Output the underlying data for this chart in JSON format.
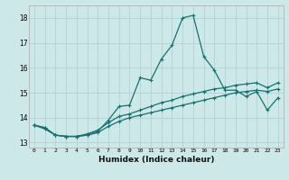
{
  "title": "",
  "xlabel": "Humidex (Indice chaleur)",
  "background_color": "#cce8e8",
  "grid_color": "#b8d4d4",
  "line_color": "#1a7070",
  "xlim": [
    -0.5,
    23.5
  ],
  "ylim": [
    12.8,
    18.5
  ],
  "xticks": [
    0,
    1,
    2,
    3,
    4,
    5,
    6,
    7,
    8,
    9,
    10,
    11,
    12,
    13,
    14,
    15,
    16,
    17,
    18,
    19,
    20,
    21,
    22,
    23
  ],
  "yticks": [
    13,
    14,
    15,
    16,
    17,
    18
  ],
  "line1_y": [
    13.7,
    13.6,
    13.3,
    13.25,
    13.25,
    13.3,
    13.4,
    13.65,
    13.85,
    14.0,
    14.1,
    14.2,
    14.3,
    14.4,
    14.5,
    14.6,
    14.7,
    14.8,
    14.9,
    15.0,
    15.05,
    15.1,
    15.05,
    15.15
  ],
  "line2_y": [
    13.7,
    13.55,
    13.3,
    13.25,
    13.25,
    13.35,
    13.5,
    13.8,
    14.05,
    14.15,
    14.3,
    14.45,
    14.6,
    14.7,
    14.85,
    14.95,
    15.05,
    15.15,
    15.2,
    15.3,
    15.35,
    15.4,
    15.2,
    15.4
  ],
  "line3_y": [
    13.7,
    13.6,
    13.3,
    13.25,
    13.25,
    13.3,
    13.45,
    13.9,
    14.45,
    14.5,
    15.6,
    15.5,
    16.35,
    16.9,
    18.0,
    18.1,
    16.45,
    15.9,
    15.1,
    15.1,
    14.85,
    15.05,
    14.3,
    14.8
  ]
}
